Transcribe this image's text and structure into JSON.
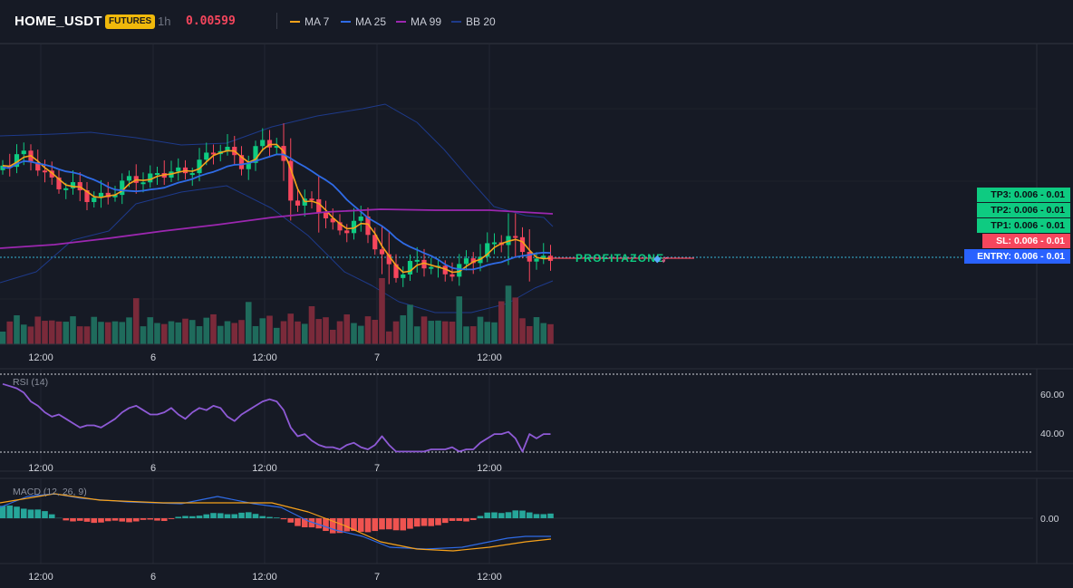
{
  "header": {
    "symbol": "HOME_USDT",
    "badge": "FUTURES",
    "timeframe": "1h",
    "price": "0.00599"
  },
  "legend": [
    {
      "label": "MA 7",
      "color": "#f7a21b"
    },
    {
      "label": "MA 25",
      "color": "#2f6be6"
    },
    {
      "label": "MA 99",
      "color": "#9c27b0"
    },
    {
      "label": "BB 20",
      "color": "#1e3a8a"
    }
  ],
  "levels": [
    {
      "label": "TP3: 0.006 - 0.01",
      "color": "#0ecb81"
    },
    {
      "label": "TP2: 0.006 - 0.01",
      "color": "#0ecb81"
    },
    {
      "label": "TP1: 0.006 - 0.01",
      "color": "#0ecb81"
    },
    {
      "label": "SL: 0.006 - 0.01",
      "color": "#f6465d"
    },
    {
      "label": "ENTRY: 0.006 - 0.01",
      "color": "#2962ff"
    }
  ],
  "watermark": "PROFITAZONE",
  "x_labels": [
    "12:00",
    "6",
    "12:00",
    "7",
    "12:00"
  ],
  "colors": {
    "up": "#0ecb81",
    "down": "#f6465d",
    "bg": "#161a25",
    "grid": "#232733"
  },
  "chart_data": [
    {
      "type": "candlestick",
      "title": "HOME_USDT",
      "xlabel": "",
      "ylabel": "",
      "x_ticks": [
        "12:00",
        "6",
        "12:00",
        "7",
        "12:00"
      ],
      "series": [
        {
          "name": "MA 7"
        },
        {
          "name": "MA 25"
        },
        {
          "name": "MA 99"
        },
        {
          "name": "BB 20"
        }
      ],
      "last_price": 0.00599
    },
    {
      "type": "line",
      "title": "RSI (14)",
      "y_ticks": [
        "60.00",
        "40.00"
      ],
      "x_ticks": [
        "12:00",
        "6",
        "12:00",
        "7",
        "12:00"
      ],
      "values": [
        68,
        67,
        66,
        64,
        60,
        58,
        55,
        53,
        54,
        52,
        50,
        48,
        49,
        49,
        48,
        50,
        52,
        55,
        57,
        58,
        56,
        54,
        54,
        55,
        57,
        54,
        52,
        55,
        57,
        56,
        58,
        57,
        53,
        51,
        54,
        56,
        58,
        60,
        61,
        60,
        56,
        48,
        44,
        45,
        42,
        40,
        39,
        39,
        38,
        40,
        41,
        39,
        38,
        40,
        44,
        40,
        37,
        37,
        37,
        37,
        37,
        38,
        38,
        38,
        39,
        37,
        38,
        38,
        41,
        43,
        45,
        45,
        46,
        43,
        37,
        45,
        43,
        45,
        45
      ],
      "ylim": [
        28,
        75
      ]
    },
    {
      "type": "bar",
      "title": "MACD (12, 26, 9)",
      "y_ticks": [
        "0.00"
      ],
      "x_ticks": [
        "12:00",
        "6",
        "12:00",
        "7",
        "12:00"
      ]
    }
  ]
}
